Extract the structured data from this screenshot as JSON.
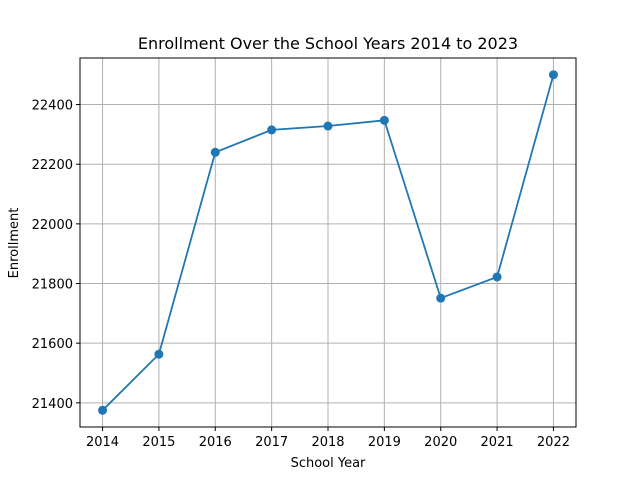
{
  "chart_data": {
    "type": "line",
    "title": "Enrollment Over the School Years 2014 to 2023",
    "xlabel": "School Year",
    "ylabel": "Enrollment",
    "x": [
      2014,
      2015,
      2016,
      2017,
      2018,
      2019,
      2020,
      2021,
      2022
    ],
    "x_tick_labels": [
      "2014",
      "2015",
      "2016",
      "2017",
      "2018",
      "2019",
      "2020",
      "2021",
      "2022"
    ],
    "y_ticks": [
      21400,
      21600,
      21800,
      22000,
      22200,
      22400
    ],
    "y_tick_labels": [
      "21400",
      "21600",
      "21800",
      "22000",
      "22200",
      "22400"
    ],
    "series": [
      {
        "values": [
          21375,
          21563,
          22240,
          22315,
          22328,
          22347,
          21751,
          21822,
          22500
        ]
      }
    ],
    "xlim": [
      2013.6,
      2022.4
    ],
    "ylim": [
      21319,
      22556
    ],
    "grid": true,
    "line_color": "#1f77b4",
    "marker": "circle"
  }
}
